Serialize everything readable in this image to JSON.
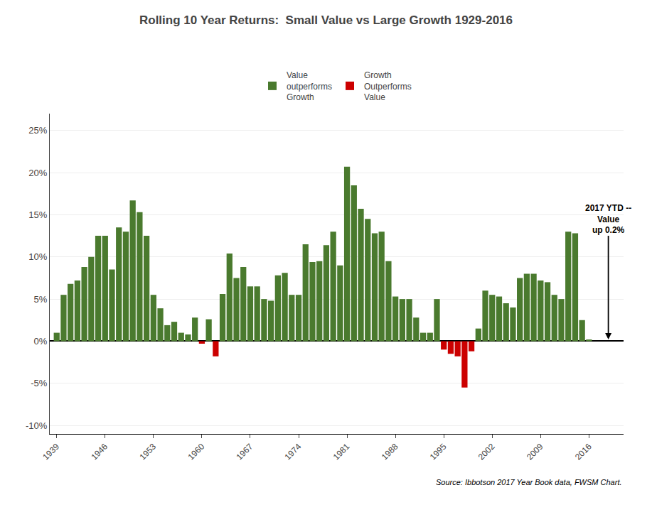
{
  "chart_data": {
    "type": "bar",
    "title": "Rolling 10 Year Returns:  Small Value vs Large Growth 1929-2016",
    "categories": [
      "1939",
      null,
      null,
      null,
      null,
      null,
      null,
      "1946",
      null,
      null,
      null,
      null,
      null,
      null,
      "1953",
      null,
      null,
      null,
      null,
      null,
      null,
      "1960",
      null,
      null,
      null,
      null,
      null,
      null,
      "1967",
      null,
      null,
      null,
      null,
      null,
      null,
      "1974",
      null,
      null,
      null,
      null,
      null,
      null,
      "1981",
      null,
      null,
      null,
      null,
      null,
      null,
      "1988",
      null,
      null,
      null,
      null,
      null,
      null,
      "1995",
      null,
      null,
      null,
      null,
      null,
      null,
      "2002",
      null,
      null,
      null,
      null,
      null,
      null,
      "2009",
      null,
      null,
      null,
      null,
      null,
      null,
      "2016"
    ],
    "series": [
      {
        "name": "Value\noutperforms\nGrowth",
        "color": "#4a7a2e",
        "values": [
          1.0,
          5.5,
          6.8,
          7.2,
          8.8,
          10.0,
          12.5,
          12.5,
          8.5,
          13.5,
          13.0,
          16.7,
          15.3,
          12.5,
          5.5,
          3.9,
          1.9,
          2.3,
          1.0,
          0.8,
          2.8,
          null,
          2.6,
          null,
          5.6,
          10.4,
          7.5,
          8.8,
          6.5,
          6.5,
          5.0,
          4.8,
          7.8,
          8.1,
          5.5,
          5.5,
          11.5,
          9.4,
          9.5,
          11.4,
          13.0,
          9.0,
          20.7,
          18.5,
          15.7,
          14.5,
          12.8,
          13.0,
          9.5,
          5.3,
          5.0,
          5.0,
          2.8,
          1.0,
          1.0,
          5.0,
          null,
          null,
          null,
          null,
          null,
          1.5,
          6.0,
          5.5,
          5.3,
          4.5,
          4.0,
          7.5,
          8.0,
          8.0,
          7.2,
          7.0,
          5.5,
          5.0,
          13.0,
          12.8,
          2.5,
          0.2
        ]
      },
      {
        "name": "Growth\nOutperforms\nValue",
        "color": "#cc0000",
        "values": [
          null,
          null,
          null,
          null,
          null,
          null,
          null,
          null,
          null,
          null,
          null,
          null,
          null,
          null,
          null,
          null,
          null,
          null,
          null,
          null,
          null,
          -0.3,
          null,
          -1.8,
          null,
          null,
          null,
          null,
          null,
          null,
          null,
          null,
          null,
          null,
          null,
          null,
          null,
          null,
          null,
          null,
          null,
          null,
          null,
          null,
          null,
          null,
          null,
          null,
          null,
          null,
          null,
          null,
          null,
          null,
          null,
          null,
          -1.0,
          -1.5,
          -1.8,
          -5.5,
          -1.2,
          null,
          null,
          null,
          null,
          null,
          null,
          null,
          null,
          null,
          null,
          null,
          null,
          null,
          null,
          null,
          null,
          null
        ]
      }
    ],
    "ylim": [
      -11,
      27
    ],
    "yticks": [
      {
        "value": 25,
        "label": "25%"
      },
      {
        "value": 20,
        "label": "20%"
      },
      {
        "value": 15,
        "label": "15%"
      },
      {
        "value": 10,
        "label": "10%"
      },
      {
        "value": 5,
        "label": "5%"
      },
      {
        "value": 0,
        "label": "0%"
      },
      {
        "value": -5,
        "label": "-5%"
      },
      {
        "value": -10,
        "label": "-10%"
      }
    ],
    "grid": true,
    "legend": "top",
    "annotations": [
      "2017 YTD --\nValue\nup 0.2%"
    ],
    "source": "Source: Ibbotson 2017 Year Book data, FWSM Chart."
  }
}
